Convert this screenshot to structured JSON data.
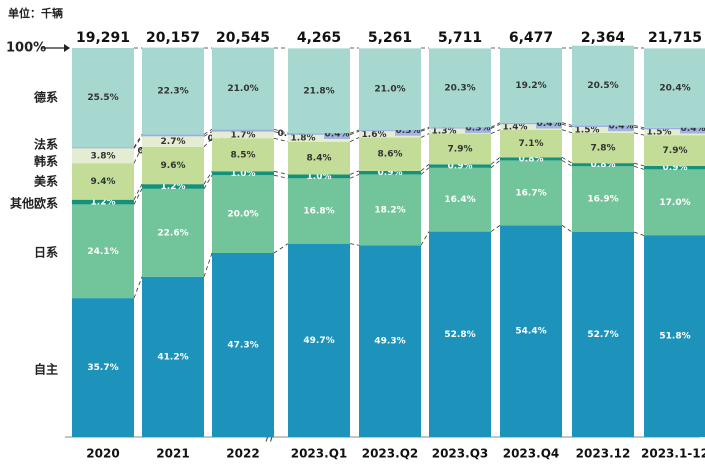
{
  "chart_data": {
    "type": "stacked_bar_100",
    "unit": "单位：千辆",
    "top_label": "100%",
    "categories": [
      "2020",
      "2021",
      "2022",
      "2023.Q1",
      "2023.Q2",
      "2023.Q3",
      "2023.Q4",
      "2023.12",
      "2023.1-12"
    ],
    "totals": [
      "19,291",
      "20,157",
      "20,545",
      "4,265",
      "5,261",
      "5,711",
      "6,477",
      "2,364",
      "21,715"
    ],
    "ylim": [
      0,
      100
    ],
    "series": [
      {
        "name": "自主",
        "color": "#1d93bb",
        "values": [
          35.7,
          41.2,
          47.3,
          49.7,
          49.3,
          52.8,
          54.4,
          52.7,
          51.8
        ],
        "value_labels": [
          "35.7%",
          "41.2%",
          "47.3%",
          "49.7%",
          "49.3%",
          "52.8%",
          "54.4%",
          "52.7%",
          "51.8%"
        ]
      },
      {
        "name": "日系",
        "color": "#72c49a",
        "values": [
          24.1,
          22.6,
          20.0,
          16.8,
          18.2,
          16.4,
          16.7,
          16.9,
          17.0
        ],
        "value_labels": [
          "24.1%",
          "22.6%",
          "20.0%",
          "16.8%",
          "18.2%",
          "16.4%",
          "16.7%",
          "16.9%",
          "17.0%"
        ]
      },
      {
        "name": "其他欧系",
        "color": "#13917a",
        "values": [
          1.2,
          1.2,
          1.0,
          1.0,
          0.9,
          0.9,
          0.8,
          0.8,
          0.9
        ],
        "value_labels": [
          "1.2%",
          "1.2%",
          "1.0%",
          "1.0%",
          "0.9%",
          "0.9%",
          "0.8%",
          "0.8%",
          "0.9%"
        ]
      },
      {
        "name": "美系",
        "color": "#c3dd98",
        "values": [
          9.4,
          9.6,
          8.5,
          8.4,
          8.6,
          7.9,
          7.1,
          7.8,
          7.9
        ],
        "value_labels": [
          "9.4%",
          "9.6%",
          "8.5%",
          "8.4%",
          "8.6%",
          "7.9%",
          "7.1%",
          "7.8%",
          "7.9%"
        ]
      },
      {
        "name": "韩系",
        "color": "#e4edd2",
        "values": [
          3.8,
          2.7,
          1.7,
          1.8,
          1.6,
          1.3,
          1.4,
          1.5,
          1.5
        ],
        "value_labels": [
          "3.8%",
          "2.7%",
          "1.7%",
          "1.8%",
          "1.6%",
          "1.3%",
          "1.4%",
          "1.5%",
          "1.5%"
        ]
      },
      {
        "name": "法系",
        "color": "#9aaee0",
        "values": [
          0.3,
          0.5,
          0.6,
          0.4,
          0.3,
          0.3,
          0.4,
          0.4,
          0.4
        ],
        "value_labels": [
          "0.3%",
          "0.5%",
          "0.6%",
          "0.4%",
          "0.3%",
          "0.3%",
          "0.4%",
          "0.4%",
          "0.4%"
        ]
      },
      {
        "name": "德系",
        "color": "#a6d8cf",
        "values": [
          25.5,
          22.3,
          21.0,
          21.8,
          21.0,
          20.3,
          19.2,
          20.5,
          20.4
        ],
        "value_labels": [
          "25.5%",
          "22.3%",
          "21.0%",
          "21.8%",
          "21.0%",
          "20.3%",
          "19.2%",
          "20.5%",
          "20.4%"
        ]
      }
    ]
  }
}
